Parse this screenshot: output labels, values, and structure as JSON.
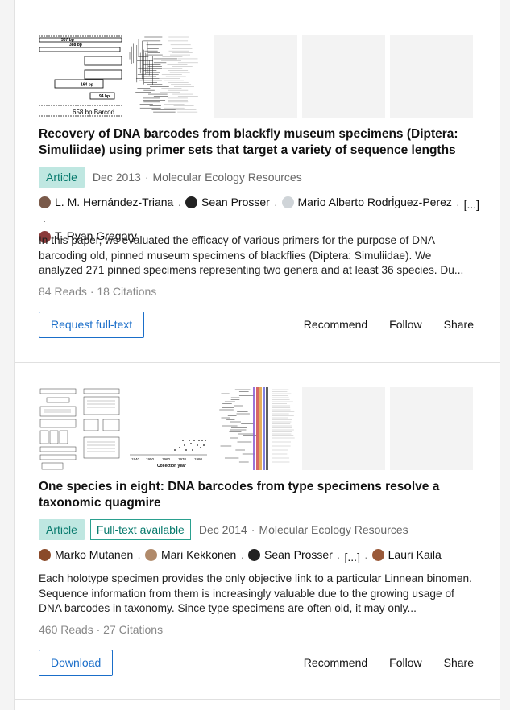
{
  "publications": [
    {
      "title": "Recovery of DNA barcodes from blackfly museum specimens (Diptera: Simuliidae) using primer sets that target a variety of sequence lengths",
      "type_badge": "Article",
      "fulltext_badge": "",
      "date": "Dec 2013",
      "journal": "Molecular Ecology Resources",
      "figure_labels": [
        "307 bp",
        "388 bp",
        "164 bp",
        "94 bp",
        "658 bp Barcod"
      ],
      "authors": [
        {
          "name": "L. M. Hernández-Triana",
          "avatar_color": "#7a5a4a"
        },
        {
          "name": "Sean Prosser",
          "avatar_color": "#222222"
        },
        {
          "name": "Mario Alberto Rodrĺguez-Perez",
          "avatar_color": "#cfd4d8"
        },
        {
          "name": "[...]",
          "avatar_color": ""
        },
        {
          "name": "T. Ryan Gregory",
          "avatar_color": "#8a3a3a"
        }
      ],
      "abstract": "In this paper, we evaluated the efficacy of various primers for the purpose of DNA barcoding old, pinned museum specimens of blackflies (Diptera: Simuliidae). We analyzed 271 pinned specimens representing two genera and at least 36 species. Du...",
      "stats": "84 Reads · 18 Citations",
      "primary_button": "Request full-text",
      "actions": [
        "Recommend",
        "Follow",
        "Share"
      ]
    },
    {
      "title": "One species in eight: DNA barcodes from type specimens resolve a taxonomic quagmire",
      "type_badge": "Article",
      "fulltext_badge": "Full-text available",
      "date": "Dec 2014",
      "journal": "Molecular Ecology Resources",
      "figure_labels": [
        "1940",
        "1950",
        "1960",
        "1970",
        "1980",
        "Collection year"
      ],
      "authors": [
        {
          "name": "Marko Mutanen",
          "avatar_color": "#8a4a2a"
        },
        {
          "name": "Mari Kekkonen",
          "avatar_color": "#b08a6a"
        },
        {
          "name": "Sean Prosser",
          "avatar_color": "#222222"
        },
        {
          "name": "[...]",
          "avatar_color": ""
        },
        {
          "name": "Lauri Kaila",
          "avatar_color": "#9a5a3a"
        }
      ],
      "abstract": "Each holotype specimen provides the only objective link to a particular Linnean binomen. Sequence information from them is increasingly valuable due to the growing usage of DNA barcodes in taxonomy. Since type specimens are often old, it may only...",
      "stats": "460 Reads · 27 Citations",
      "primary_button": "Download",
      "actions": [
        "Recommend",
        "Follow",
        "Share"
      ]
    }
  ]
}
